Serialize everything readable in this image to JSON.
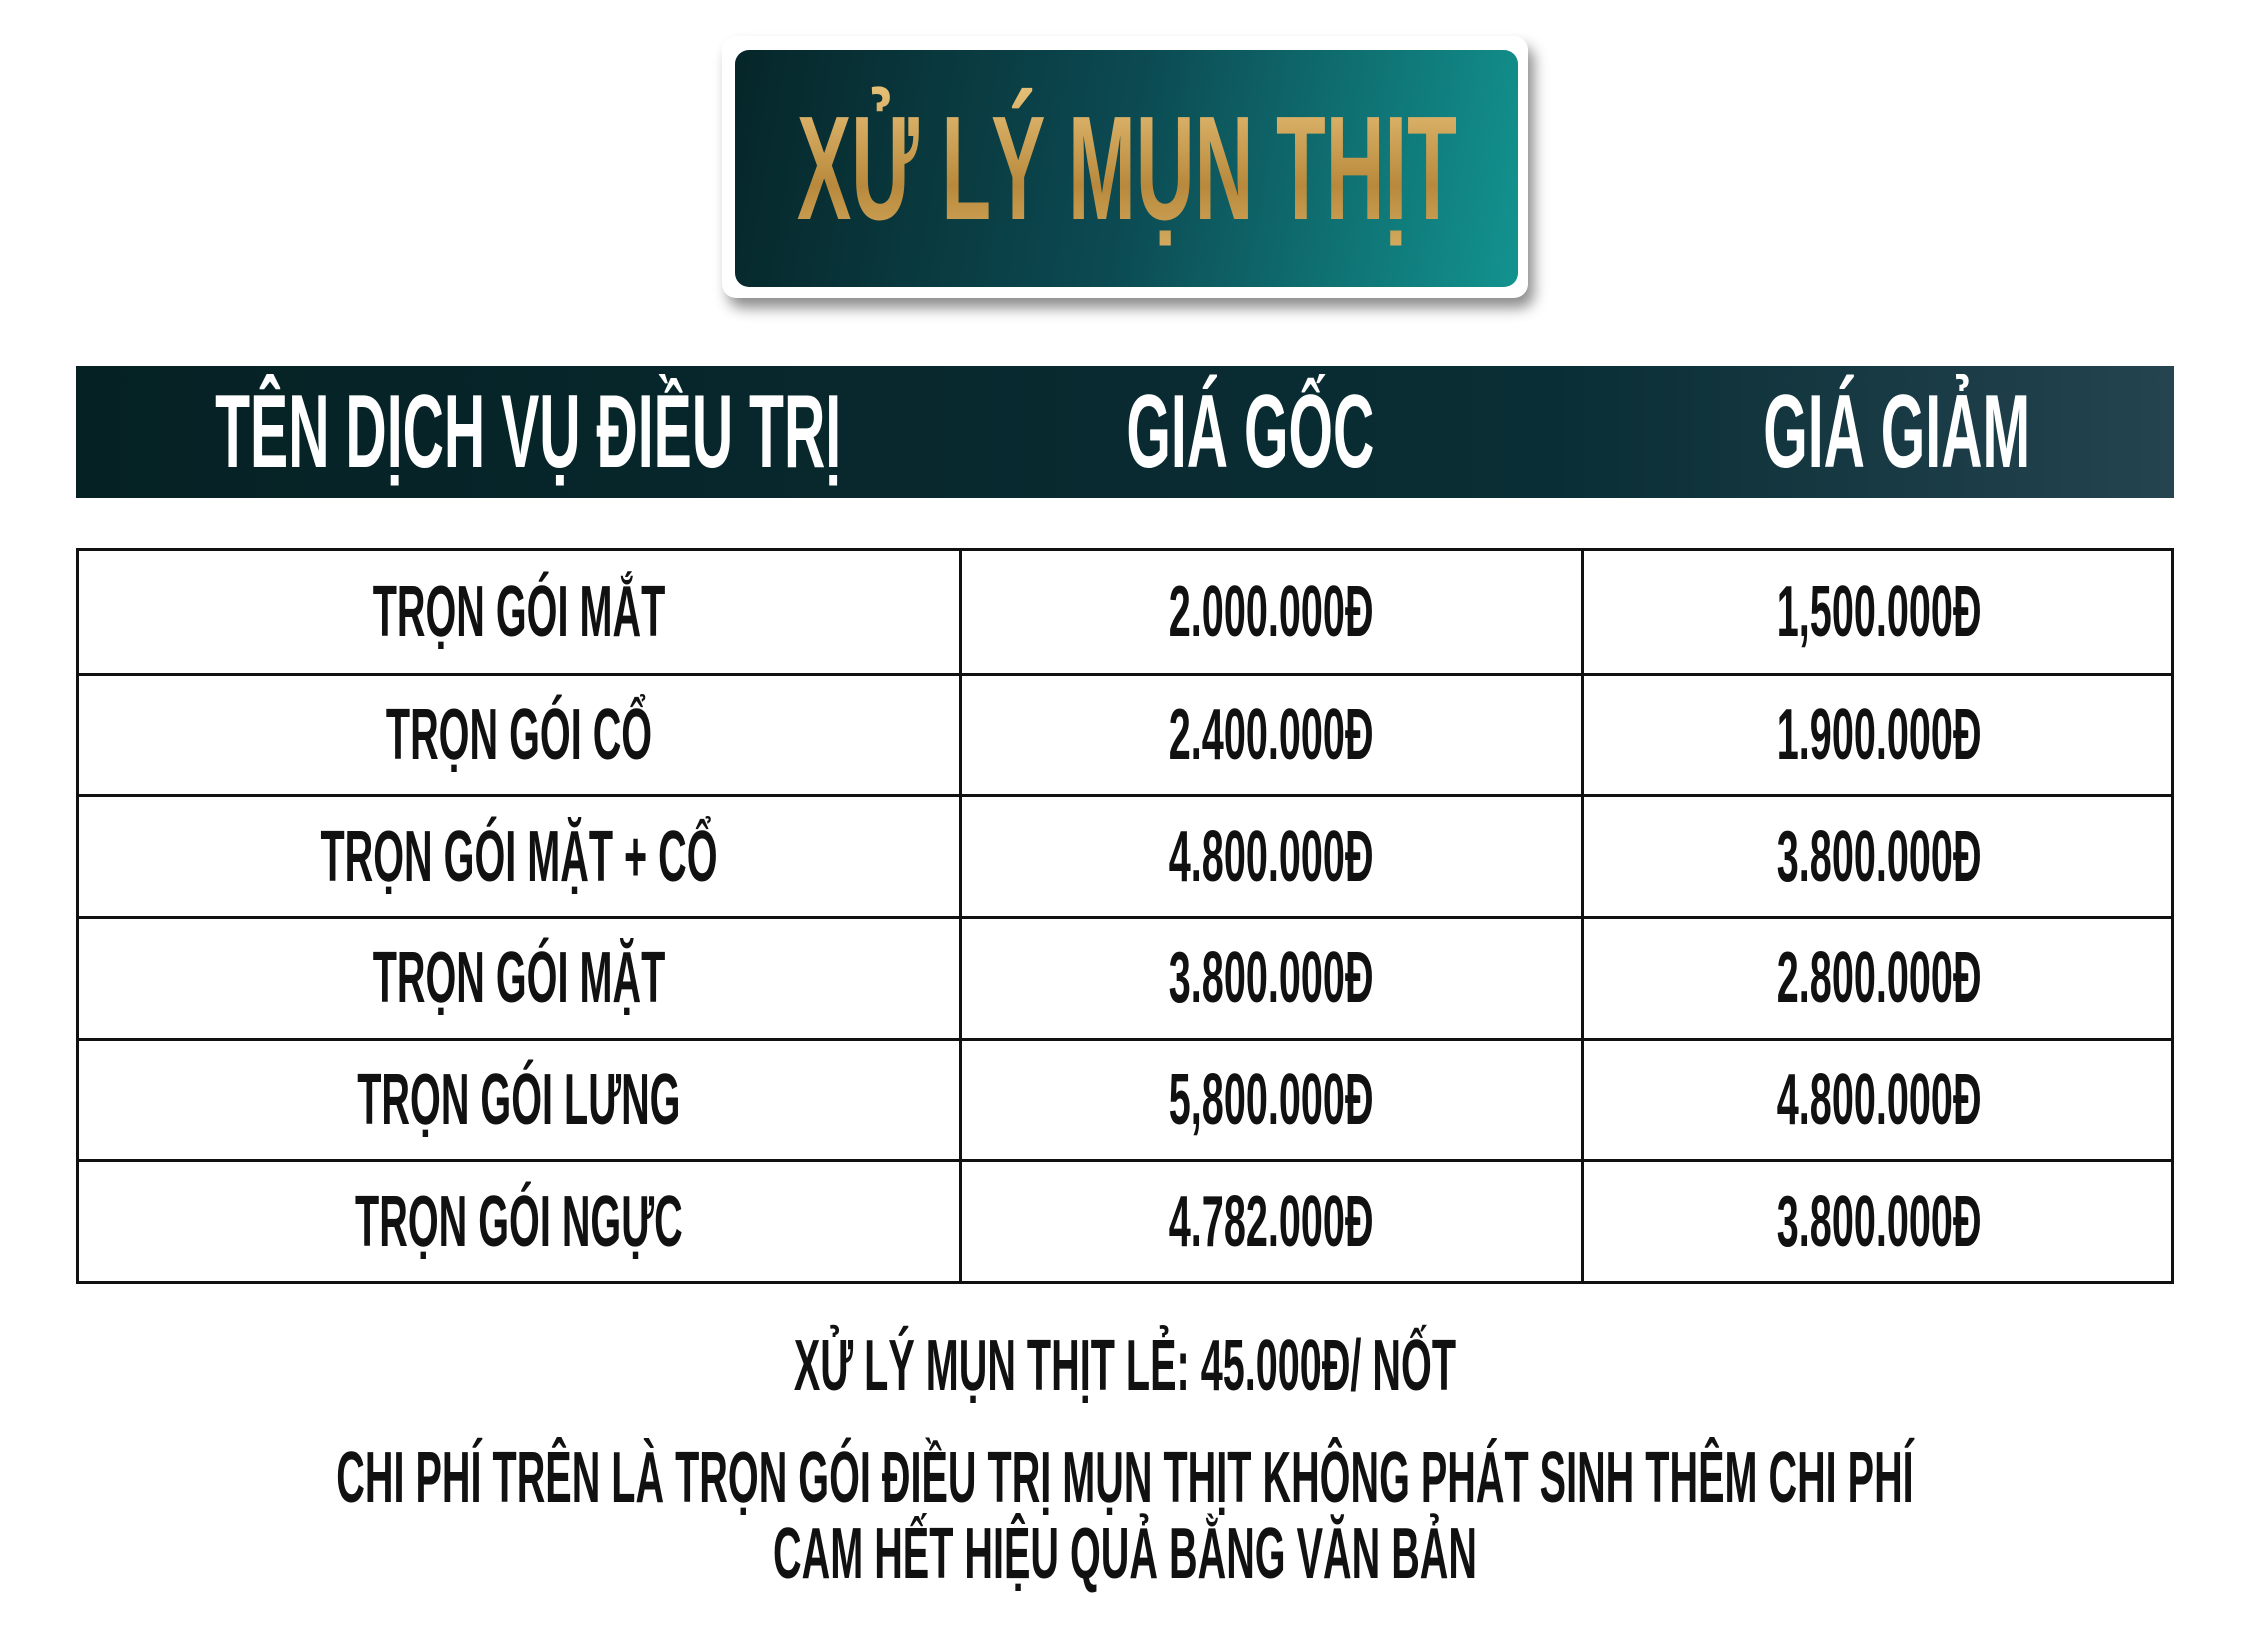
{
  "title": "XỬ LÝ MỤN THỊT",
  "table": {
    "header": [
      "TÊN DỊCH VỤ ĐIỀU TRỊ",
      "GIÁ GỐC",
      "GIÁ GIẢM"
    ],
    "rows": [
      [
        "TRỌN GÓI MẮT",
        "2.000.000Đ",
        "1,500.000Đ"
      ],
      [
        "TRỌN GÓI CỔ",
        "2.400.000Đ",
        "1.900.000Đ"
      ],
      [
        "TRỌN GÓI MẶT + CỔ",
        "4.800.000Đ",
        "3.800.000Đ"
      ],
      [
        "TRỌN GÓI MẶT",
        "3.800.000Đ",
        "2.800.000Đ"
      ],
      [
        "TRỌN GÓI LƯNG",
        "5,800.000Đ",
        "4.800.000Đ"
      ],
      [
        "TRỌN GÓI NGỰC",
        "4.782.000Đ",
        "3.800.000Đ"
      ]
    ]
  },
  "notes": [
    "XỬ LÝ MỤN THỊT LẺ: 45.000Đ/ NỐT",
    "CHI PHÍ TRÊN LÀ TRỌN GÓI ĐIỀU TRỊ MỤN THỊT KHÔNG PHÁT SINH THÊM CHI PHÍ",
    "CAM HẾT HIỆU QUẢ BẰNG VĂN BẢN"
  ]
}
